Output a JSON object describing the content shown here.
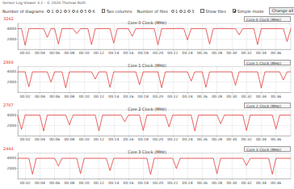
{
  "window": {
    "title": "Sensor Log Viewer 3.2 - © 2020 Thomas Roth",
    "controls": [
      {
        "label": "Number of diagrams",
        "options": [
          "1",
          "2",
          "3",
          "4",
          "5",
          "6"
        ],
        "selected": "4"
      },
      {
        "checkbox": "Two columns",
        "checked": false
      },
      {
        "label": "Number of files",
        "options": [
          "1",
          "2",
          "3"
        ],
        "selected": "1"
      },
      {
        "checkbox": "Show files",
        "checked": false
      },
      {
        "checkbox": "Simple mode",
        "checked": true
      }
    ],
    "button": "Change all",
    "selectors": [
      "Core 0 Clock (MHz)",
      "Core 1 Clock (MHz)",
      "Core 2 Clock (MHz)",
      "Core 3 Clock (MHz)"
    ]
  },
  "chart_data": [
    {
      "type": "line",
      "title": "Core 0 Clock (MHz)",
      "annotation": "3242",
      "color": "#e53b3b",
      "grid": true,
      "x": [
        1,
        1.5,
        2,
        2.5,
        3,
        3.5,
        4,
        4.5,
        5,
        5.5,
        6,
        6.5,
        7,
        7.5,
        8,
        8.5,
        9,
        9.5,
        10,
        10.5,
        11,
        11.5,
        12,
        12.5,
        13,
        13.5,
        14,
        14.5,
        15,
        15.5,
        16,
        16.5,
        17,
        17.5,
        18,
        18.5,
        19,
        19.5,
        20,
        20.5,
        21,
        21.5,
        22,
        22.5,
        23,
        23.5,
        24,
        24.5,
        25,
        25.5,
        26,
        26.5,
        27,
        27.5,
        28,
        28.5,
        29,
        29.5,
        30,
        30.5,
        31,
        31.5,
        32,
        32.5,
        33,
        33.5,
        34,
        34.5,
        35,
        35.5,
        36,
        36.5,
        37,
        37.5,
        38
      ],
      "values": [
        3990,
        3985,
        800,
        3990,
        3990,
        3980,
        3995,
        3990,
        2300,
        3990,
        3990,
        1000,
        3985,
        3990,
        3990,
        3990,
        3000,
        3990,
        3990,
        3990,
        900,
        3990,
        3990,
        3990,
        3990,
        3990,
        1200,
        3990,
        3990,
        3990,
        3990,
        2500,
        3990,
        3990,
        3990,
        3990,
        3990,
        3990,
        850,
        3990,
        3990,
        3990,
        3990,
        3990,
        3990,
        3990,
        1800,
        3990,
        3990,
        3990,
        3990,
        3990,
        1000,
        3990,
        3990,
        3990,
        3990,
        3990,
        3990,
        3990,
        2800,
        3990,
        3990,
        3990,
        3990,
        900,
        3990,
        3990,
        3990,
        3990,
        3990,
        3990,
        3990,
        1500,
        3990
      ],
      "xlim": [
        1,
        38
      ],
      "xticks": [
        {
          "value": 2,
          "label": "00:02"
        },
        {
          "value": 4,
          "label": "00:04"
        },
        {
          "value": 6,
          "label": "00:06"
        },
        {
          "value": 8,
          "label": "00:08"
        },
        {
          "value": 10,
          "label": "00:10"
        },
        {
          "value": 12,
          "label": "00:12"
        },
        {
          "value": 14,
          "label": "00:14"
        },
        {
          "value": 16,
          "label": "00:16"
        },
        {
          "value": 18,
          "label": "00:18"
        },
        {
          "value": 20,
          "label": "00:20"
        },
        {
          "value": 22,
          "label": "00:22"
        },
        {
          "value": 24,
          "label": "00:24"
        },
        {
          "value": 26,
          "label": "00:26"
        },
        {
          "value": 28,
          "label": "00:28"
        },
        {
          "value": 30,
          "label": "00:30"
        },
        {
          "value": 32,
          "label": "00:32"
        },
        {
          "value": 34,
          "label": "00:34"
        },
        {
          "value": 36,
          "label": "00:36"
        }
      ],
      "ylim": [
        0,
        5000
      ],
      "yticks": [
        2000,
        4000
      ]
    },
    {
      "type": "line",
      "title": "Core 1 Clock (MHz)",
      "annotation": "2889",
      "color": "#e53b3b",
      "grid": true,
      "x": [
        1,
        1.5,
        2,
        2.5,
        3,
        3.5,
        4,
        4.5,
        5,
        5.5,
        6,
        6.5,
        7,
        7.5,
        8,
        8.5,
        9,
        9.5,
        10,
        10.5,
        11,
        11.5,
        12,
        12.5,
        13,
        13.5,
        14,
        14.5,
        15,
        15.5,
        16,
        16.5,
        17,
        17.5,
        18,
        18.5,
        19,
        19.5,
        20,
        20.5,
        21,
        21.5,
        22,
        22.5,
        23,
        23.5,
        24,
        24.5,
        25,
        25.5,
        26,
        26.5,
        27,
        27.5,
        28,
        28.5,
        29,
        29.5,
        30,
        30.5,
        31,
        31.5,
        32,
        32.5,
        33,
        33.5,
        34,
        34.5,
        35,
        35.5,
        36,
        36.5,
        37,
        37.5,
        38
      ],
      "values": [
        3990,
        3990,
        3990,
        1100,
        3990,
        3990,
        3990,
        3990,
        3990,
        2000,
        3990,
        3990,
        3990,
        900,
        3990,
        3990,
        3990,
        3990,
        3990,
        3990,
        3990,
        2600,
        3990,
        3990,
        3990,
        1000,
        3990,
        3990,
        3990,
        3990,
        3990,
        3990,
        3990,
        1500,
        3990,
        3990,
        3990,
        3990,
        3990,
        900,
        3990,
        3990,
        3990,
        3990,
        3990,
        3990,
        3990,
        2200,
        3990,
        3990,
        3990,
        1000,
        3990,
        3990,
        3990,
        3990,
        3990,
        3990,
        3990,
        1400,
        3990,
        3990,
        3990,
        3990,
        3990,
        3990,
        850,
        3990,
        3990,
        3990,
        3990,
        3990,
        2400,
        3990,
        3990
      ],
      "xlim": [
        1,
        38
      ],
      "xticks": [
        {
          "value": 2,
          "label": "00:02"
        },
        {
          "value": 4,
          "label": "00:04"
        },
        {
          "value": 6,
          "label": "00:06"
        },
        {
          "value": 8,
          "label": "00:08"
        },
        {
          "value": 10,
          "label": "00:10"
        },
        {
          "value": 12,
          "label": "00:12"
        },
        {
          "value": 14,
          "label": "00:14"
        },
        {
          "value": 16,
          "label": "00:16"
        },
        {
          "value": 18,
          "label": "00:18"
        },
        {
          "value": 20,
          "label": "00:20"
        },
        {
          "value": 22,
          "label": "00:22"
        },
        {
          "value": 24,
          "label": "00:24"
        },
        {
          "value": 26,
          "label": "00:26"
        },
        {
          "value": 28,
          "label": "00:28"
        },
        {
          "value": 30,
          "label": "00:30"
        },
        {
          "value": 32,
          "label": "00:32"
        },
        {
          "value": 34,
          "label": "00:34"
        },
        {
          "value": 36,
          "label": "00:36"
        }
      ],
      "ylim": [
        0,
        5000
      ],
      "yticks": [
        2000,
        4000
      ]
    },
    {
      "type": "line",
      "title": "Core 2 Clock (MHz)",
      "annotation": "2787",
      "color": "#e53b3b",
      "grid": true,
      "x": [
        1,
        1.5,
        2,
        2.5,
        3,
        3.5,
        4,
        4.5,
        5,
        5.5,
        6,
        6.5,
        7,
        7.5,
        8,
        8.5,
        9,
        9.5,
        10,
        10.5,
        11,
        11.5,
        12,
        12.5,
        13,
        13.5,
        14,
        14.5,
        15,
        15.5,
        16,
        16.5,
        17,
        17.5,
        18,
        18.5,
        19,
        19.5,
        20,
        20.5,
        21,
        21.5,
        22,
        22.5,
        23,
        23.5,
        24,
        24.5,
        25,
        25.5,
        26,
        26.5,
        27,
        27.5,
        28,
        28.5,
        29,
        29.5,
        30,
        30.5,
        31,
        31.5,
        32,
        32.5,
        33,
        33.5,
        34,
        34.5,
        35,
        35.5,
        36,
        36.5,
        37,
        37.5,
        38
      ],
      "values": [
        3990,
        1200,
        3990,
        3990,
        3990,
        3990,
        3990,
        900,
        3990,
        3990,
        3990,
        3990,
        3990,
        3990,
        2100,
        3990,
        3990,
        3990,
        3990,
        3990,
        3990,
        3990,
        950,
        3990,
        3990,
        3990,
        3990,
        3990,
        3990,
        2700,
        3990,
        3990,
        3990,
        3990,
        1000,
        3990,
        3990,
        3990,
        3990,
        3990,
        3990,
        1700,
        3990,
        3990,
        3990,
        3990,
        3990,
        3990,
        900,
        3990,
        3990,
        3990,
        3990,
        3990,
        3990,
        2300,
        3990,
        3990,
        3990,
        3990,
        3990,
        3990,
        1000,
        3990,
        3990,
        3990,
        3990,
        3990,
        3990,
        3990,
        1300,
        3990,
        3990,
        3990,
        3990
      ],
      "xlim": [
        1,
        38
      ],
      "xticks": [
        {
          "value": 2,
          "label": "00:02"
        },
        {
          "value": 4,
          "label": "00:04"
        },
        {
          "value": 6,
          "label": "00:06"
        },
        {
          "value": 8,
          "label": "00:08"
        },
        {
          "value": 10,
          "label": "00:10"
        },
        {
          "value": 12,
          "label": "00:12"
        },
        {
          "value": 14,
          "label": "00:14"
        },
        {
          "value": 16,
          "label": "00:16"
        },
        {
          "value": 18,
          "label": "00:18"
        },
        {
          "value": 20,
          "label": "00:20"
        },
        {
          "value": 22,
          "label": "00:22"
        },
        {
          "value": 24,
          "label": "00:24"
        },
        {
          "value": 26,
          "label": "00:26"
        },
        {
          "value": 28,
          "label": "00:28"
        },
        {
          "value": 30,
          "label": "00:30"
        },
        {
          "value": 32,
          "label": "00:32"
        },
        {
          "value": 34,
          "label": "00:34"
        },
        {
          "value": 36,
          "label": "00:36"
        }
      ],
      "ylim": [
        0,
        5000
      ],
      "yticks": [
        2000,
        4000
      ]
    },
    {
      "type": "line",
      "title": "Core 3 Clock (MHz)",
      "annotation": "2444",
      "color": "#e53b3b",
      "grid": true,
      "x": [
        1,
        1.5,
        2,
        2.5,
        3,
        3.5,
        4,
        4.5,
        5,
        5.5,
        6,
        6.5,
        7,
        7.5,
        8,
        8.5,
        9,
        9.5,
        10,
        10.5,
        11,
        11.5,
        12,
        12.5,
        13,
        13.5,
        14,
        14.5,
        15,
        15.5,
        16,
        16.5,
        17,
        17.5,
        18,
        18.5,
        19,
        19.5,
        20,
        20.5,
        21,
        21.5,
        22,
        22.5,
        23,
        23.5,
        24,
        24.5,
        25,
        25.5,
        26,
        26.5,
        27,
        27.5,
        28,
        28.5,
        29,
        29.5,
        30,
        30.5,
        31,
        31.5,
        32,
        32.5,
        33,
        33.5,
        34,
        34.5,
        35,
        35.5,
        36,
        36.5,
        37,
        37.5,
        38
      ],
      "values": [
        3990,
        3990,
        3990,
        3990,
        900,
        3990,
        3990,
        3990,
        3990,
        3990,
        3990,
        2500,
        3990,
        3990,
        3990,
        3990,
        3990,
        1000,
        3990,
        3990,
        3990,
        3990,
        3990,
        3990,
        3990,
        1600,
        3990,
        3990,
        3990,
        3990,
        3990,
        3990,
        3990,
        3990,
        3990,
        3990,
        850,
        3990,
        3990,
        3990,
        3990,
        3990,
        3990,
        2000,
        3990,
        3990,
        3990,
        3990,
        3990,
        3990,
        3990,
        3990,
        3990,
        3990,
        1000,
        3990,
        3990,
        3990,
        3990,
        3990,
        3990,
        3990,
        2600,
        3990,
        3990,
        3990,
        3990,
        3990,
        3990,
        900,
        3990,
        3990,
        3990,
        3990,
        3990
      ],
      "xlim": [
        1,
        38
      ],
      "xticks": [
        {
          "value": 2,
          "label": "00:02"
        },
        {
          "value": 4,
          "label": "00:04"
        },
        {
          "value": 6,
          "label": "00:06"
        },
        {
          "value": 8,
          "label": "00:08"
        },
        {
          "value": 10,
          "label": "00:10"
        },
        {
          "value": 12,
          "label": "00:12"
        },
        {
          "value": 14,
          "label": "00:14"
        },
        {
          "value": 16,
          "label": "00:16"
        },
        {
          "value": 18,
          "label": "00:18"
        },
        {
          "value": 20,
          "label": "00:20"
        },
        {
          "value": 22,
          "label": "00:22"
        },
        {
          "value": 24,
          "label": "00:24"
        },
        {
          "value": 26,
          "label": "00:26"
        },
        {
          "value": 28,
          "label": "00:28"
        },
        {
          "value": 30,
          "label": "00:30"
        },
        {
          "value": 32,
          "label": "00:32"
        },
        {
          "value": 34,
          "label": "00:34"
        },
        {
          "value": 36,
          "label": "00:36"
        }
      ],
      "ylim": [
        0,
        5000
      ],
      "yticks": [
        2000,
        4000
      ]
    }
  ]
}
